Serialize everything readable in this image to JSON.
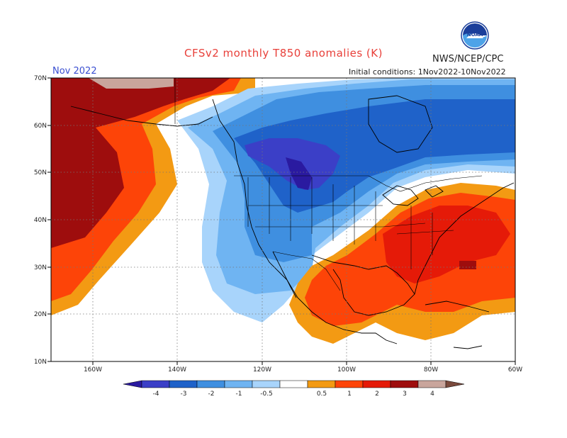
{
  "header": {
    "title": "CFSv2 monthly T850 anomalies (K)",
    "organization": "NWS/NCEP/CPC",
    "logo_text": "NOAA",
    "month": "Nov 2022",
    "initial_conditions": "Initial conditions: 1Nov2022-10Nov2022"
  },
  "map": {
    "lat_labels": [
      "70N",
      "60N",
      "50N",
      "40N",
      "30N",
      "20N",
      "10N"
    ],
    "lon_labels": [
      "160W",
      "140W",
      "120W",
      "100W",
      "80W",
      "60W"
    ],
    "regions": {
      "alaska_warm": "Above-normal T850 over Alaska and northeast Pacific",
      "canada_cold": "Below-normal T850 over western Canada and northwestern US",
      "east_warm": "Above-normal T850 over eastern US, Gulf of Mexico and Mexico"
    }
  },
  "colorbar": {
    "labels": [
      "-4",
      "-3",
      "-2",
      "-1",
      "-0.5",
      "0.5",
      "1",
      "2",
      "3",
      "4"
    ],
    "colors": [
      "#2a1aa0",
      "#3b3fc7",
      "#1f62c9",
      "#3f8fe0",
      "#6fb4f2",
      "#a8d4fb",
      "#ffffff",
      "#f39a13",
      "#fd4408",
      "#e51a08",
      "#9e0d0d",
      "#c9a59c",
      "#7a4a3c"
    ]
  }
}
